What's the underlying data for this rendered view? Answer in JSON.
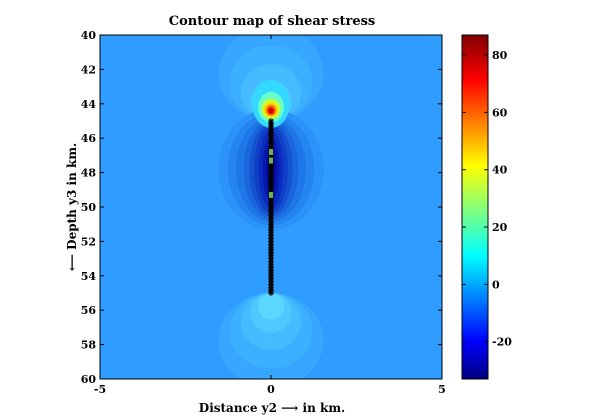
{
  "chart_data": {
    "type": "heatmap",
    "title": "Contour map of shear stress",
    "xlabel": "Distance y2 ⟶ in km.",
    "ylabel": "⟵ Depth y3 in km.",
    "xlim": [
      -5,
      5
    ],
    "ylim": [
      40,
      60
    ],
    "y_reversed": true,
    "x_ticks": [
      "-5",
      "0",
      "5"
    ],
    "y_ticks": [
      "40",
      "42",
      "44",
      "46",
      "48",
      "50",
      "52",
      "54",
      "56",
      "58",
      "60"
    ],
    "colorbar": {
      "range": [
        -33,
        87
      ],
      "ticks": [
        "-20",
        "0",
        "20",
        "40",
        "60",
        "80"
      ],
      "colormap": "jet"
    },
    "fault": {
      "x": 0,
      "depth_top": 45,
      "depth_bottom": 55
    },
    "peak": {
      "x": 0,
      "depth": 44.3,
      "value": 87
    },
    "colors": {
      "background": "#2f9dff"
    }
  }
}
